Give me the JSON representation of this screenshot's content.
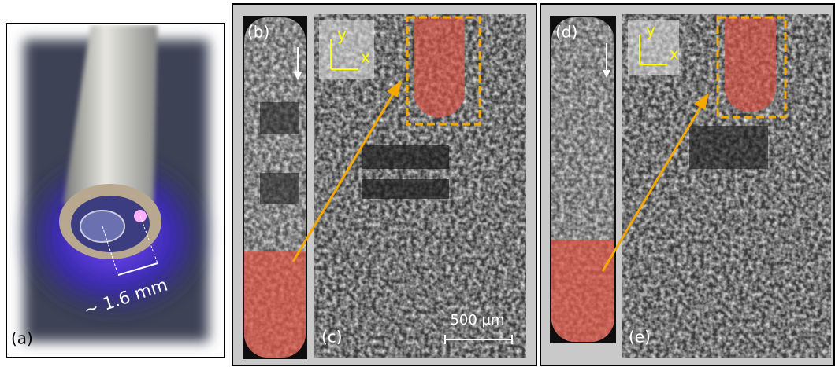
{
  "panels": [
    {
      "label": "(a)",
      "annotation": "~ 1.6 mm"
    },
    {
      "label": "(b)"
    },
    {
      "label": "(c)",
      "axis_y": "y",
      "axis_x": "x",
      "scale_bar": "500 μm"
    },
    {
      "label": "(d)"
    },
    {
      "label": "(e)",
      "axis_y": "y",
      "axis_x": "x"
    }
  ]
}
